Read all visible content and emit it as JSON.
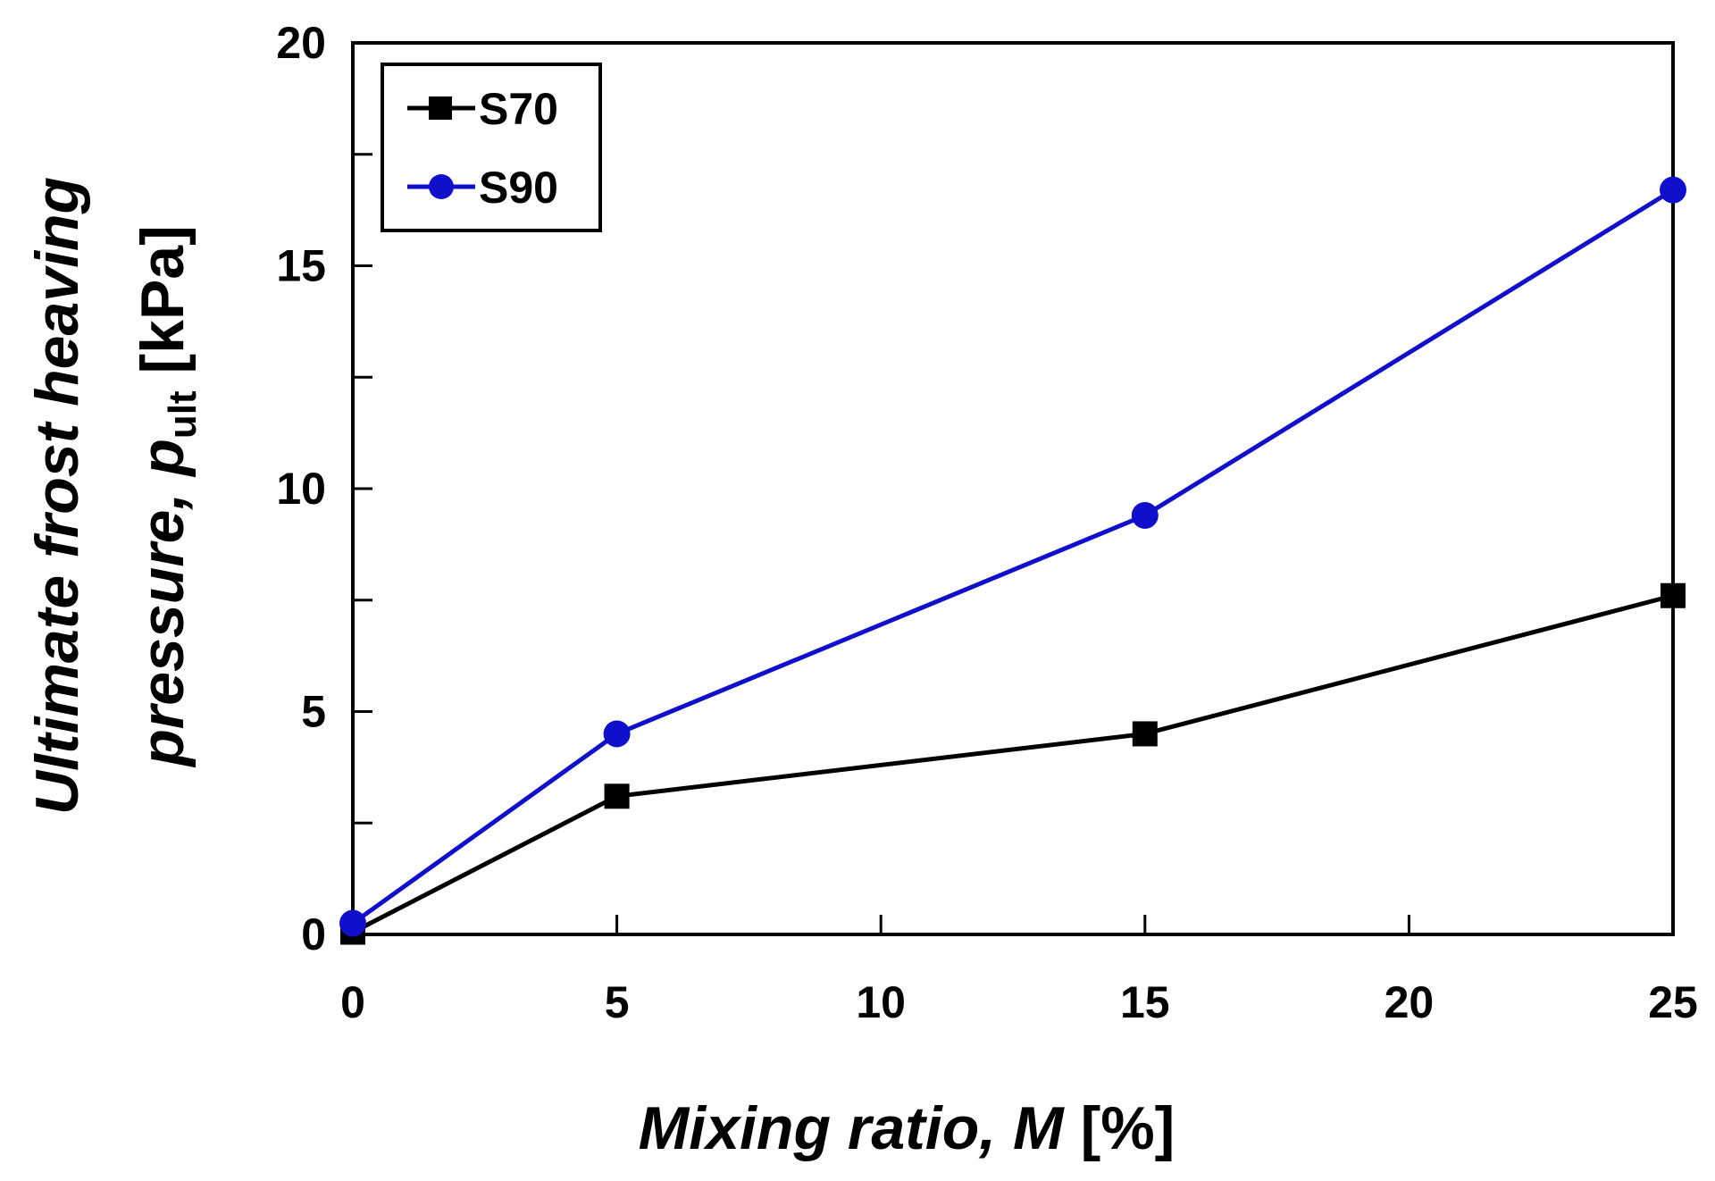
{
  "chart_data": {
    "type": "line",
    "title": "",
    "xlabel": {
      "main": "Mixing ratio, ",
      "var": "M",
      "unit": " [%]"
    },
    "ylabel": {
      "line1": "Ultimate frost heaving",
      "line2_pre": "pressure, ",
      "var": "p",
      "sub": "ult",
      "unit": " [kPa]"
    },
    "x": [
      0,
      5,
      15,
      25
    ],
    "xlim": [
      0,
      25
    ],
    "ylim": [
      0,
      20
    ],
    "x_ticks": [
      0,
      5,
      10,
      15,
      20,
      25
    ],
    "y_ticks": [
      0,
      5,
      10,
      15,
      20
    ],
    "y_minor_step": 2.5,
    "grid": false,
    "legend_position": "top-left",
    "series": [
      {
        "name": "S70",
        "values": [
          0.05,
          3.1,
          4.5,
          7.6
        ],
        "color": "#000000",
        "marker": "square"
      },
      {
        "name": "S90",
        "values": [
          0.25,
          4.5,
          9.4,
          16.7
        ],
        "color": "#1010cc",
        "marker": "circle"
      }
    ]
  }
}
